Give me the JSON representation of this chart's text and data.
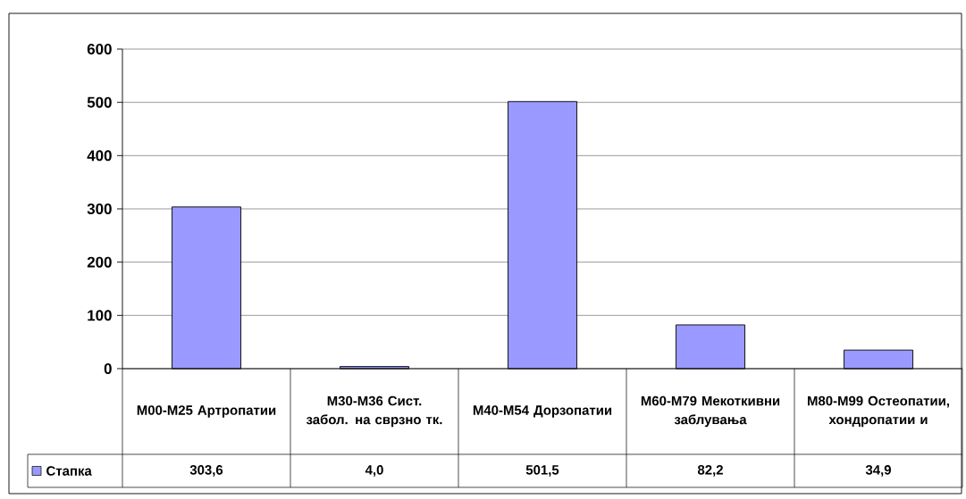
{
  "chart_data": {
    "type": "bar",
    "categories": [
      "M00-M25 Артропатии",
      "M30-M36 Сист. забол. на сврзно тк.",
      "M40-M54 Дорзопатии",
      "M60-M79 Мекоткивни заблувања",
      "M80-M99 Остеопатии, хондропатии и"
    ],
    "series": [
      {
        "name": "Стапка",
        "color": "#9999ff",
        "values": [
          303.6,
          4.0,
          501.5,
          82.2,
          34.9
        ],
        "value_labels": [
          "303,6",
          "4,0",
          "501,5",
          "82,2",
          "34,9"
        ]
      }
    ],
    "ylim": [
      0,
      600
    ],
    "yticks": [
      0,
      100,
      200,
      300,
      400,
      500,
      600
    ],
    "grid": "y",
    "legend": "bottom left"
  }
}
